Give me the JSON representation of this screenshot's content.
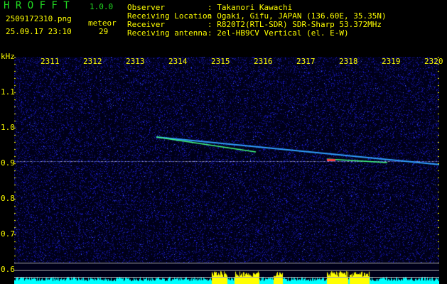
{
  "app": {
    "name": "H R O F F T",
    "version": "1.0.0"
  },
  "file": {
    "name": "2509172310.png",
    "datetime": "25.09.17 23:10"
  },
  "meteor": {
    "label": "meteor",
    "count": "29"
  },
  "info": [
    {
      "label": "Observer",
      "value": ": Takanori Kawachi"
    },
    {
      "label": "Receiving Location",
      "value": ": Ogaki, Gifu, JAPAN (136.60E, 35.35N)"
    },
    {
      "label": "Receiver",
      "value": ": R820T2(RTL-SDR) SDR-Sharp 53.372MHz"
    },
    {
      "label": "Receiving antenna",
      "value": ": 2el-HB9CV Vertical (el. E-W)"
    }
  ],
  "spectrogram": {
    "y_unit": "kHz",
    "x_ticks": [
      "2311",
      "2312",
      "2313",
      "2314",
      "2315",
      "2316",
      "2317",
      "2318",
      "2319",
      "2320"
    ],
    "y_ticks": [
      "1.1",
      "1.0",
      "0.9",
      "0.8",
      "0.7",
      "0.6"
    ],
    "colors": {
      "background": "#000020",
      "noise": "#1a1aff",
      "text": "#ffff00",
      "level": "#00ffff",
      "meteor_level": "#ffff00"
    }
  }
}
